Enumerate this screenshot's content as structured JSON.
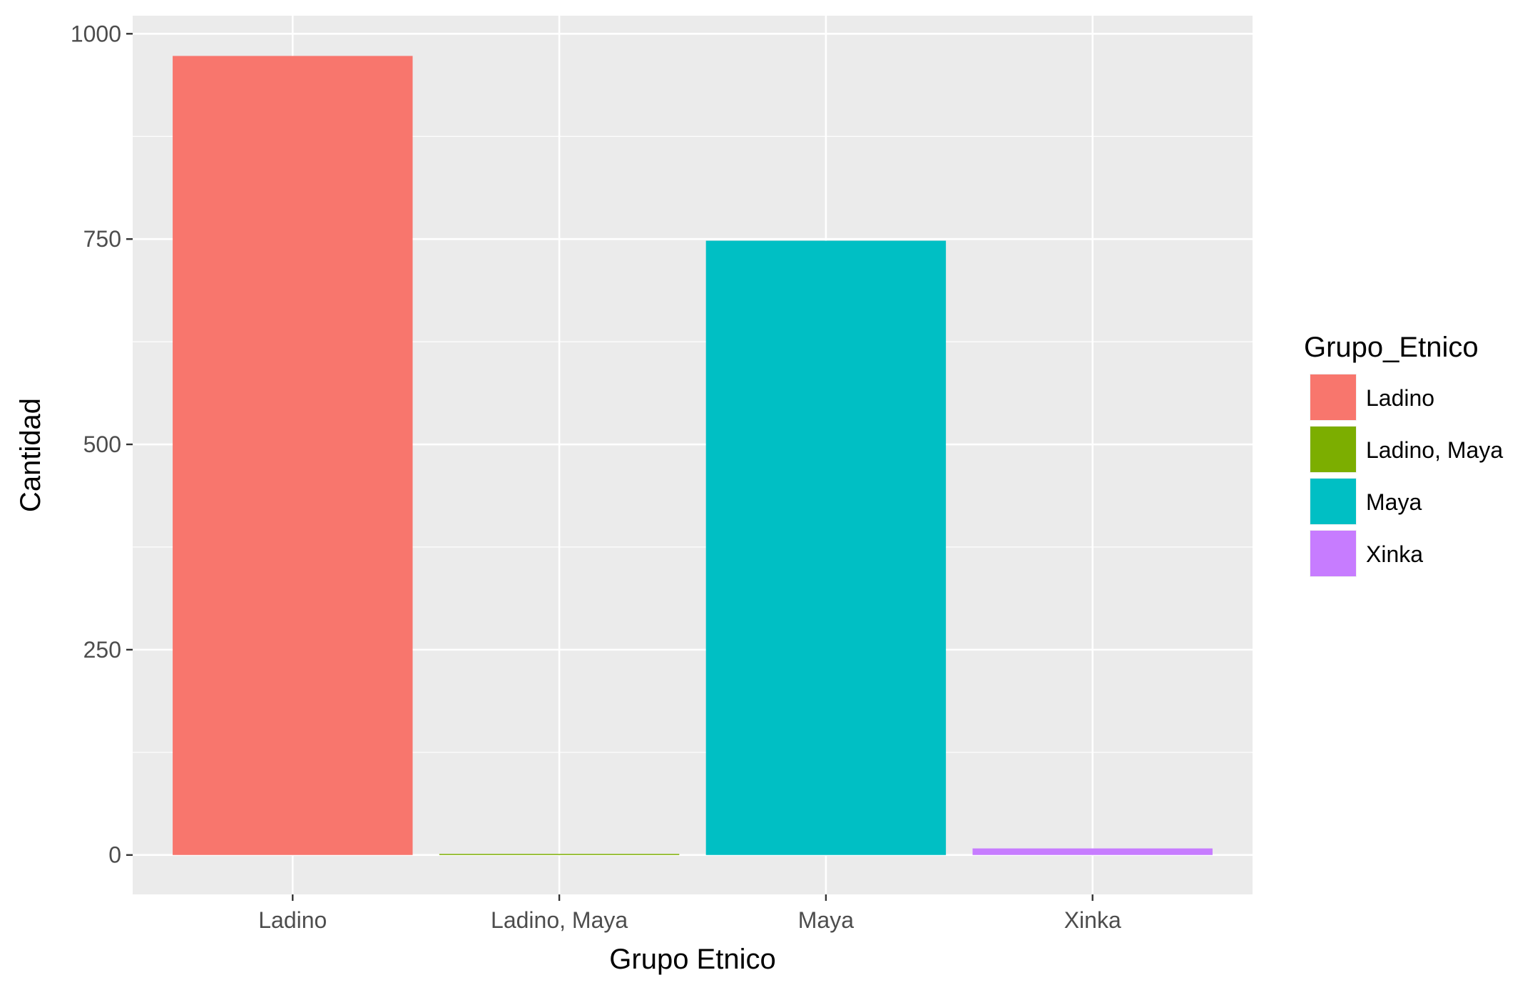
{
  "chart_data": {
    "type": "bar",
    "xlabel": "Grupo Etnico",
    "ylabel": "Cantidad",
    "categories": [
      "Ladino",
      "Ladino, Maya",
      "Maya",
      "Xinka"
    ],
    "values": [
      973,
      1,
      748,
      8
    ],
    "colors": [
      "#F8766D",
      "#7CAE00",
      "#00BFC4",
      "#C77CFF"
    ],
    "ylim": [
      -48,
      1022
    ],
    "yticks": [
      0,
      250,
      500,
      750,
      1000
    ],
    "ytick_labels": [
      "0",
      "250",
      "500",
      "750",
      "1000"
    ],
    "grid": true,
    "panel_background": "#EBEBEB",
    "legend": {
      "title": "Grupo_Etnico",
      "position": "right",
      "items": [
        "Ladino",
        "Ladino, Maya",
        "Maya",
        "Xinka"
      ]
    }
  }
}
